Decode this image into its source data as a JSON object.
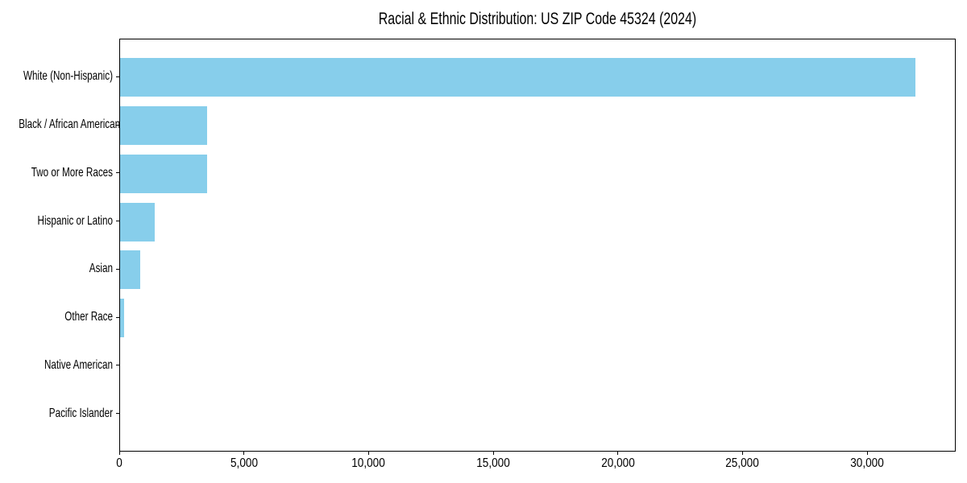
{
  "figure": {
    "title": "Racial & Ethnic Distribution: US ZIP Code 45324 (2024)"
  },
  "chart_data": {
    "type": "bar",
    "orientation": "horizontal",
    "title": "Racial & Ethnic Distribution: US ZIP Code 45324 (2024)",
    "categories": [
      "White (Non-Hispanic)",
      "Black / African American",
      "Two or More Races",
      "Hispanic or Latino",
      "Asian",
      "Other Race",
      "Native American",
      "Pacific Islander"
    ],
    "values": [
      31950,
      3500,
      3500,
      1400,
      800,
      150,
      0,
      0
    ],
    "xlabel": "",
    "ylabel": "",
    "xlim": [
      0,
      33550
    ],
    "xticks": [
      0,
      5000,
      10000,
      15000,
      20000,
      25000,
      30000
    ],
    "xtick_labels": [
      "0",
      "5,000",
      "10,000",
      "15,000",
      "20,000",
      "25,000",
      "30,000"
    ],
    "bar_color": "#87CEEB",
    "axis_color": "#000000",
    "text_color": "#000000",
    "background_color": "#FFFFFF",
    "grid": false,
    "legend": null
  }
}
